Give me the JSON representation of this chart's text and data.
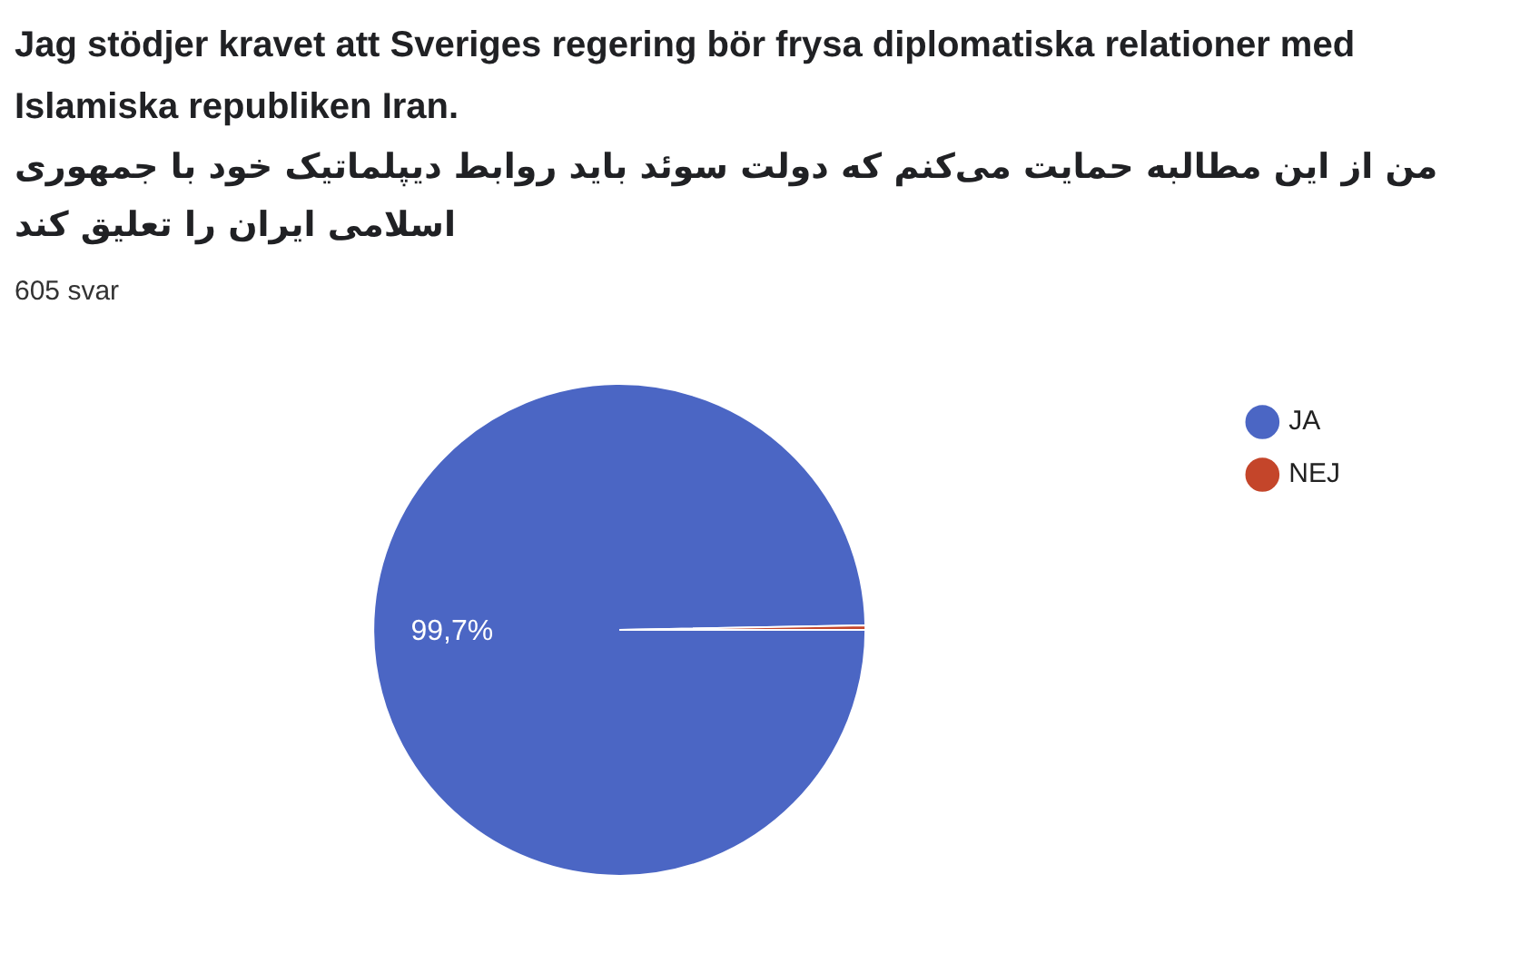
{
  "chart_data": {
    "type": "pie",
    "title": "Jag stödjer kravet att Sveriges regering bör frysa diplomatiska relationer med Islamiska republiken Iran.",
    "subtitle": "من از این مطالبه حمایت می‌کنم که دولت سوئد باید روابط دیپلماتیک خود با جمهوری اسلامی ایران را تعلیق کند",
    "annotations": [
      "605 svar"
    ],
    "categories": [
      "JA",
      "NEJ"
    ],
    "values": [
      99.7,
      0.3
    ],
    "value_labels": [
      "99,7%",
      null
    ],
    "colors": [
      "#4b66c4",
      "#c4452a"
    ],
    "legend": "top right"
  }
}
